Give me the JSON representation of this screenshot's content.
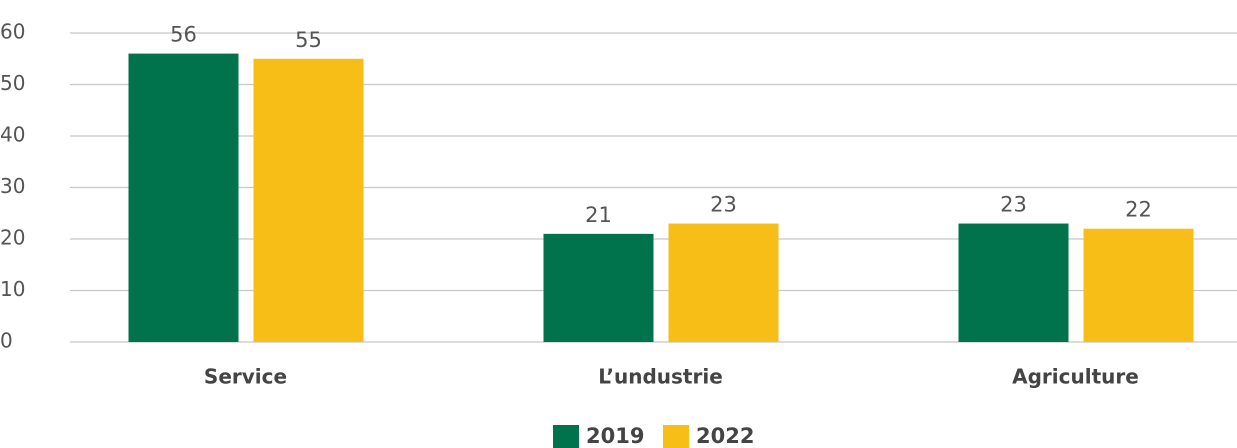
{
  "chart_data": {
    "type": "bar",
    "categories": [
      "Service",
      "L’undustrie",
      "Agriculture"
    ],
    "series": [
      {
        "name": "2019",
        "color": "#00734d",
        "values": [
          56,
          21,
          23
        ]
      },
      {
        "name": "2022",
        "color": "#f6be17",
        "values": [
          55,
          23,
          22
        ]
      }
    ],
    "ylim": [
      0,
      60
    ],
    "yticks": [
      0,
      10,
      20,
      30,
      40,
      50,
      60
    ],
    "grid": true,
    "legend": "bottom"
  }
}
